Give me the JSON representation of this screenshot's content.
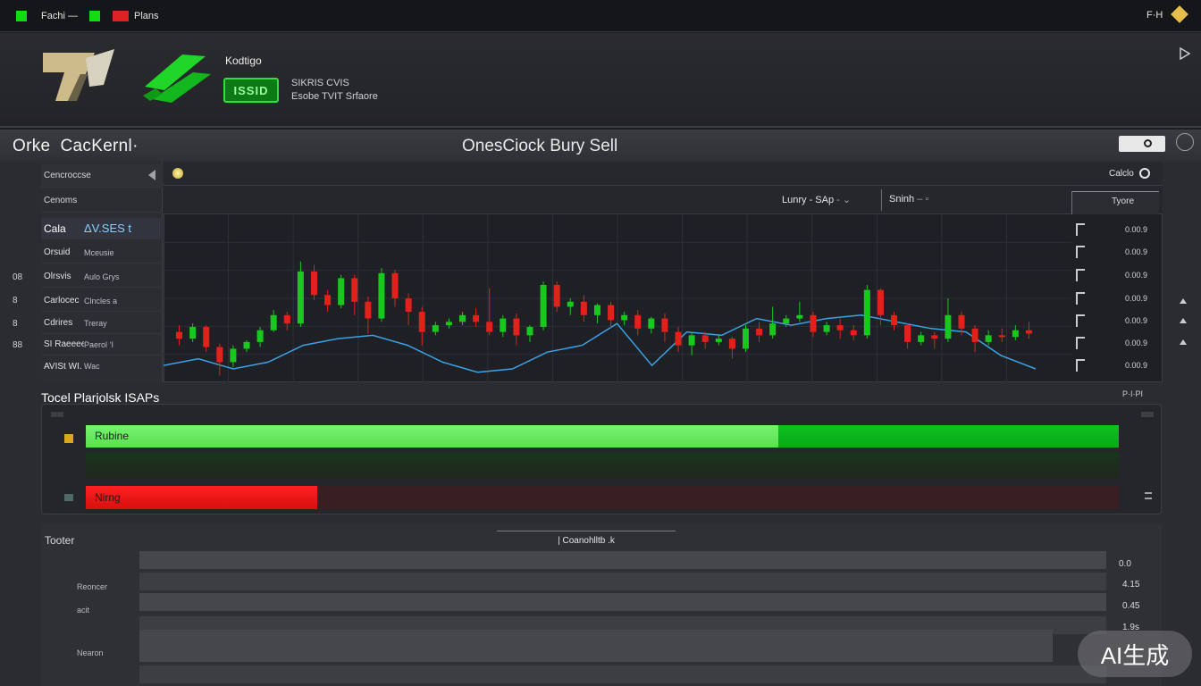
{
  "topbar": {
    "text_left": "Fachi —",
    "text_right": "Plans",
    "right_text": "F·H",
    "accent_green": "#11dd11",
    "accent_red": "#dd2222"
  },
  "header": {
    "brand": "Kodtigo",
    "badge": "ISSID",
    "status_line1": "SIKRIS CVIS",
    "status_line2": "Esobe TVIT Srfaore"
  },
  "titlerow": {
    "left_title": "Orke  CacKernl·",
    "center_title": "OnesCiock Bury Sell"
  },
  "sidebar": {
    "top_label": "Cencroccse",
    "label2": "Cenoms",
    "items": [
      {
        "a": "Cala",
        "b": "ΔV.SES t",
        "active": true
      },
      {
        "a": "Orsuid",
        "b": "Mceusie"
      },
      {
        "a": "Olrsvis",
        "b": "Aulo Grys"
      },
      {
        "a": "Carlocec",
        "b": "Clncles a"
      },
      {
        "a": "Cdrires",
        "b": "Treray"
      },
      {
        "a": "SI Raeeee",
        "b": "Paerol ‘I"
      },
      {
        "a": "AVISt WI.",
        "b": "Wac"
      }
    ],
    "left_numbers": [
      "08",
      "8",
      "8",
      "88"
    ]
  },
  "chart": {
    "toolbar_right": "Calclo",
    "dropdown1": "Lunry  - SAp",
    "dropdown2": "Sninh",
    "scale_header": "Tyore",
    "scale_values": [
      "0.00.9",
      "0.00.9",
      "0.00.9",
      "0.00.9",
      "0.00.9",
      "0.00.9",
      "0.00.9"
    ],
    "up_color": "#19c81e",
    "down_color": "#e3211b",
    "line_color": "#3aa2e6"
  },
  "chart_data": {
    "type": "candlestick",
    "candles": [
      [
        0.3,
        0.26,
        0.34,
        0.22
      ],
      [
        0.26,
        0.33,
        0.35,
        0.24
      ],
      [
        0.33,
        0.21,
        0.34,
        0.18
      ],
      [
        0.21,
        0.12,
        0.23,
        0.04
      ],
      [
        0.12,
        0.2,
        0.22,
        0.09
      ],
      [
        0.2,
        0.24,
        0.25,
        0.18
      ],
      [
        0.24,
        0.31,
        0.33,
        0.21
      ],
      [
        0.31,
        0.4,
        0.43,
        0.3
      ],
      [
        0.4,
        0.35,
        0.42,
        0.31
      ],
      [
        0.35,
        0.66,
        0.72,
        0.33
      ],
      [
        0.66,
        0.52,
        0.7,
        0.49
      ],
      [
        0.52,
        0.46,
        0.55,
        0.42
      ],
      [
        0.46,
        0.62,
        0.64,
        0.44
      ],
      [
        0.62,
        0.48,
        0.64,
        0.4
      ],
      [
        0.48,
        0.38,
        0.51,
        0.29
      ],
      [
        0.38,
        0.65,
        0.68,
        0.36
      ],
      [
        0.65,
        0.5,
        0.67,
        0.45
      ],
      [
        0.5,
        0.42,
        0.53,
        0.34
      ],
      [
        0.42,
        0.3,
        0.45,
        0.22
      ],
      [
        0.3,
        0.34,
        0.36,
        0.28
      ],
      [
        0.34,
        0.36,
        0.38,
        0.32
      ],
      [
        0.36,
        0.4,
        0.42,
        0.34
      ],
      [
        0.4,
        0.36,
        0.44,
        0.33
      ],
      [
        0.36,
        0.3,
        0.56,
        0.28
      ],
      [
        0.3,
        0.38,
        0.4,
        0.27
      ],
      [
        0.38,
        0.28,
        0.41,
        0.22
      ],
      [
        0.28,
        0.33,
        0.34,
        0.24
      ],
      [
        0.33,
        0.58,
        0.6,
        0.31
      ],
      [
        0.58,
        0.45,
        0.6,
        0.42
      ],
      [
        0.45,
        0.48,
        0.5,
        0.4
      ],
      [
        0.48,
        0.4,
        0.52,
        0.36
      ],
      [
        0.4,
        0.46,
        0.47,
        0.35
      ],
      [
        0.46,
        0.37,
        0.48,
        0.32
      ],
      [
        0.37,
        0.4,
        0.42,
        0.34
      ],
      [
        0.4,
        0.32,
        0.43,
        0.28
      ],
      [
        0.32,
        0.38,
        0.39,
        0.29
      ],
      [
        0.38,
        0.3,
        0.41,
        0.24
      ],
      [
        0.3,
        0.22,
        0.33,
        0.18
      ],
      [
        0.22,
        0.28,
        0.3,
        0.16
      ],
      [
        0.28,
        0.24,
        0.3,
        0.2
      ],
      [
        0.24,
        0.26,
        0.28,
        0.22
      ],
      [
        0.26,
        0.2,
        0.27,
        0.14
      ],
      [
        0.2,
        0.32,
        0.34,
        0.18
      ],
      [
        0.32,
        0.28,
        0.36,
        0.24
      ],
      [
        0.28,
        0.35,
        0.45,
        0.26
      ],
      [
        0.35,
        0.38,
        0.4,
        0.33
      ],
      [
        0.38,
        0.4,
        0.48,
        0.36
      ],
      [
        0.4,
        0.3,
        0.42,
        0.27
      ],
      [
        0.3,
        0.34,
        0.36,
        0.28
      ],
      [
        0.34,
        0.31,
        0.38,
        0.26
      ],
      [
        0.31,
        0.28,
        0.34,
        0.25
      ],
      [
        0.28,
        0.55,
        0.58,
        0.26
      ],
      [
        0.55,
        0.4,
        0.56,
        0.34
      ],
      [
        0.4,
        0.34,
        0.42,
        0.31
      ],
      [
        0.34,
        0.24,
        0.35,
        0.2
      ],
      [
        0.24,
        0.28,
        0.3,
        0.22
      ],
      [
        0.28,
        0.26,
        0.3,
        0.2
      ],
      [
        0.26,
        0.4,
        0.5,
        0.24
      ],
      [
        0.4,
        0.32,
        0.42,
        0.28
      ],
      [
        0.32,
        0.24,
        0.34,
        0.18
      ],
      [
        0.24,
        0.28,
        0.31,
        0.22
      ],
      [
        0.28,
        0.27,
        0.32,
        0.24
      ],
      [
        0.27,
        0.31,
        0.34,
        0.25
      ],
      [
        0.31,
        0.29,
        0.36,
        0.26
      ]
    ],
    "line": [
      0.1,
      0.14,
      0.08,
      0.12,
      0.22,
      0.26,
      0.28,
      0.22,
      0.12,
      0.06,
      0.08,
      0.18,
      0.22,
      0.35,
      0.1,
      0.3,
      0.28,
      0.38,
      0.34,
      0.38,
      0.4,
      0.36,
      0.32,
      0.3,
      0.16,
      0.08
    ],
    "ylim": [
      0,
      1
    ]
  },
  "bars": {
    "title": "Tocel Plarjolsk ISAPs",
    "corner_right": "P·I·PI",
    "buy_label": "Rubine",
    "buy_fraction": 0.67,
    "buy_total_fraction": 1.0,
    "buy_color_light": "#64ec5c",
    "buy_color_dark": "#0bb81b",
    "sell_label": "Nirng",
    "sell_fraction": 0.224,
    "sell_color": "#e21414",
    "sell_track_color": "#3a1f22"
  },
  "lower": {
    "title": "Tooter",
    "tab_label": "| Coanohlltb .k",
    "row_labels": [
      "Reoncer",
      "acit",
      "Nearon",
      ""
    ],
    "right_values": [
      "0.0",
      "4.15",
      "0.45",
      "1.9s"
    ]
  },
  "watermark": "AI生成"
}
